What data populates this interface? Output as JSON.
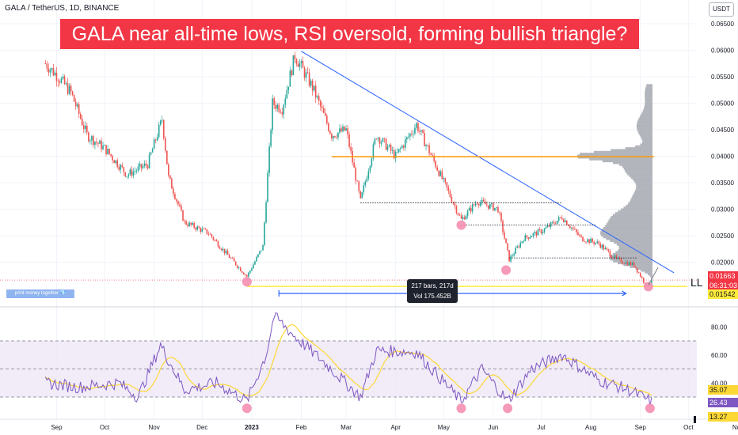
{
  "header": {
    "symbol": "GALA / TetherUS, 1D, BINANCE",
    "headline": "GALA near all-time lows, RSI oversold, forming bullish triangle?",
    "currency": "USDT"
  },
  "colors": {
    "up": "#26a69a",
    "down": "#ef5350",
    "trendline": "#2962ff",
    "resistance": "#ff9800",
    "support": "#ffeb3b",
    "rsi_line": "#7e57c2",
    "rsi_ma": "#fdd835",
    "rsi_band": "#ede7f6",
    "marker": "#f48fb1",
    "price_tag": "#f23645",
    "support_tag": "#ffeb3b"
  },
  "chart_data": [
    {
      "type": "candlestick",
      "title": "GALA / TetherUS, 1D, BINANCE",
      "x_axis": {
        "labels": [
          "Sep",
          "Oct",
          "Nov",
          "Dec",
          "2023",
          "Feb",
          "Mar",
          "Apr",
          "May",
          "Jun",
          "Jul",
          "Aug",
          "Sep",
          "Oct",
          "Nov"
        ]
      },
      "y_axis": {
        "ylim": [
          0.014,
          0.065
        ],
        "tick_labels": [
          "0.06500",
          "0.06000",
          "0.05500",
          "0.05000",
          "0.04500",
          "0.04000",
          "0.03500",
          "0.03000",
          "0.02500",
          "0.02000"
        ],
        "ticks": [
          0.065,
          0.06,
          0.055,
          0.05,
          0.045,
          0.04,
          0.035,
          0.03,
          0.025,
          0.02
        ]
      },
      "series_keypoints": [
        {
          "date": "2022-08-25",
          "close": 0.0575
        },
        {
          "date": "2022-09-02",
          "close": 0.055
        },
        {
          "date": "2022-09-10",
          "close": 0.052
        },
        {
          "date": "2022-09-20",
          "close": 0.044
        },
        {
          "date": "2022-10-01",
          "close": 0.0415
        },
        {
          "date": "2022-10-15",
          "close": 0.0365
        },
        {
          "date": "2022-10-28",
          "close": 0.0385
        },
        {
          "date": "2022-11-06",
          "close": 0.047
        },
        {
          "date": "2022-11-10",
          "close": 0.036
        },
        {
          "date": "2022-11-20",
          "close": 0.0275
        },
        {
          "date": "2022-12-05",
          "close": 0.0255
        },
        {
          "date": "2022-12-15",
          "close": 0.022
        },
        {
          "date": "2022-12-29",
          "close": 0.0173
        },
        {
          "date": "2023-01-08",
          "close": 0.023
        },
        {
          "date": "2023-01-14",
          "close": 0.05
        },
        {
          "date": "2023-01-20",
          "close": 0.049
        },
        {
          "date": "2023-01-28",
          "close": 0.059
        },
        {
          "date": "2023-02-08",
          "close": 0.053
        },
        {
          "date": "2023-02-20",
          "close": 0.044
        },
        {
          "date": "2023-03-01",
          "close": 0.045
        },
        {
          "date": "2023-03-10",
          "close": 0.0315
        },
        {
          "date": "2023-03-20",
          "close": 0.044
        },
        {
          "date": "2023-04-01",
          "close": 0.04
        },
        {
          "date": "2023-04-14",
          "close": 0.046
        },
        {
          "date": "2023-04-25",
          "close": 0.039
        },
        {
          "date": "2023-05-12",
          "close": 0.028
        },
        {
          "date": "2023-05-22",
          "close": 0.0315
        },
        {
          "date": "2023-06-04",
          "close": 0.03
        },
        {
          "date": "2023-06-11",
          "close": 0.0205
        },
        {
          "date": "2023-06-20",
          "close": 0.0245
        },
        {
          "date": "2023-07-02",
          "close": 0.026
        },
        {
          "date": "2023-07-14",
          "close": 0.0285
        },
        {
          "date": "2023-07-26",
          "close": 0.0245
        },
        {
          "date": "2023-08-06",
          "close": 0.0235
        },
        {
          "date": "2023-08-17",
          "close": 0.0205
        },
        {
          "date": "2023-08-28",
          "close": 0.0195
        },
        {
          "date": "2023-09-05",
          "close": 0.0154
        },
        {
          "date": "2023-09-08",
          "close": 0.0166
        }
      ],
      "trendline": [
        [
          "2023-02-01",
          0.0598
        ],
        [
          "2023-09-22",
          0.018
        ]
      ],
      "resistance_level": 0.0399,
      "support_level": 0.01542,
      "dotted_levels": [
        0.0312,
        0.027,
        0.0208
      ],
      "markers": [
        {
          "date": "2022-12-29",
          "value": 0.0163
        },
        {
          "date": "2023-05-12",
          "value": 0.027
        },
        {
          "date": "2023-06-09",
          "value": 0.0185
        },
        {
          "date": "2023-09-06",
          "value": 0.0154
        }
      ],
      "price_labels": [
        {
          "label": "0.01663",
          "time": "06:31:03",
          "value": 0.01663
        },
        {
          "label": "0.01542",
          "value": 0.01542
        }
      ],
      "measure": {
        "line1": "217 bars, 217d",
        "line2": "Vol 175.452B"
      },
      "annotation": "LL",
      "badge": "print money together 💎"
    },
    {
      "type": "line",
      "title": "",
      "y_axis": {
        "ylim": [
          15,
          90
        ],
        "tick_labels": [
          "80.00",
          "60.00",
          "40.00"
        ],
        "ticks": [
          80,
          60,
          40
        ]
      },
      "band": [
        30,
        70
      ],
      "last_values": {
        "ma": "35.07",
        "rsi": "26.43",
        "low": "13.27"
      },
      "rsi_keypoints": [
        {
          "date": "2022-08-25",
          "rsi": 40
        },
        {
          "date": "2022-09-15",
          "rsi": 37
        },
        {
          "date": "2022-10-10",
          "rsi": 40
        },
        {
          "date": "2022-10-22",
          "rsi": 30
        },
        {
          "date": "2022-11-05",
          "rsi": 67
        },
        {
          "date": "2022-11-20",
          "rsi": 35
        },
        {
          "date": "2022-12-10",
          "rsi": 40
        },
        {
          "date": "2022-12-29",
          "rsi": 27
        },
        {
          "date": "2023-01-10",
          "rsi": 60
        },
        {
          "date": "2023-01-15",
          "rsi": 88
        },
        {
          "date": "2023-01-28",
          "rsi": 73
        },
        {
          "date": "2023-02-15",
          "rsi": 55
        },
        {
          "date": "2023-03-10",
          "rsi": 30
        },
        {
          "date": "2023-03-20",
          "rsi": 63
        },
        {
          "date": "2023-04-14",
          "rsi": 62
        },
        {
          "date": "2023-05-12",
          "rsi": 27
        },
        {
          "date": "2023-05-25",
          "rsi": 50
        },
        {
          "date": "2023-06-10",
          "rsi": 27
        },
        {
          "date": "2023-06-25",
          "rsi": 50
        },
        {
          "date": "2023-07-14",
          "rsi": 60
        },
        {
          "date": "2023-08-06",
          "rsi": 42
        },
        {
          "date": "2023-08-25",
          "rsi": 35
        },
        {
          "date": "2023-09-08",
          "rsi": 26.43
        }
      ],
      "markers": [
        {
          "date": "2022-12-29",
          "value": 22
        },
        {
          "date": "2023-05-12",
          "value": 22
        },
        {
          "date": "2023-06-10",
          "value": 22
        },
        {
          "date": "2023-09-07",
          "value": 22
        }
      ]
    }
  ]
}
